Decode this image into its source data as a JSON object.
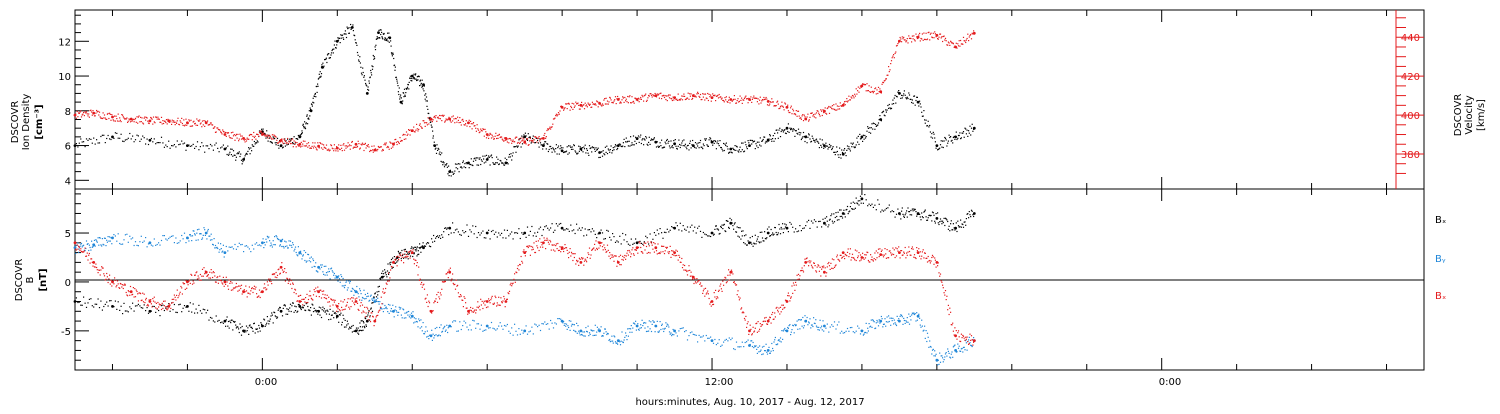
{
  "colors": {
    "black": "#000000",
    "red": "#e41a1c",
    "blue": "#1f86d8"
  },
  "xlabel": "hours:minutes, Aug. 10, 2017 - Aug. 12, 2017",
  "x_ticks": [
    "0:00",
    "12:00",
    "0:00"
  ],
  "chart_data": [
    {
      "type": "scatter",
      "panel": "top",
      "ylabel_left": [
        "DSCOVR",
        "Ion Density",
        "[cm⁻³]"
      ],
      "ylabel_right": [
        "DSCOVR",
        "Velocity",
        "[km/s]"
      ],
      "x_range_hours": [
        -5,
        31
      ],
      "ylim_left": [
        3.5,
        13.8
      ],
      "ylim_right": [
        362,
        454
      ],
      "left_ticks": [
        "4",
        "6",
        "8",
        "10",
        "12"
      ],
      "right_ticks": [
        "380",
        "400",
        "420",
        "440"
      ],
      "series": [
        {
          "axis": "left",
          "color": "black",
          "x": [
            -5,
            -4,
            -3,
            -2,
            -1,
            -0.5,
            0,
            0.5,
            1,
            1.3,
            1.6,
            2,
            2.4,
            2.8,
            3.1,
            3.4,
            3.7,
            4,
            4.3,
            4.6,
            5,
            5.5,
            6,
            6.5,
            7,
            7.5,
            8,
            8.5,
            9,
            9.5,
            10,
            10.5,
            11,
            11.5,
            12,
            12.5,
            13,
            13.5,
            14,
            14.5,
            15,
            15.5,
            16,
            16.5,
            17,
            17.5,
            18,
            18.5,
            19
          ],
          "y": [
            6,
            6.5,
            6.3,
            6,
            5.8,
            5.2,
            6.8,
            6,
            6.5,
            8,
            10.5,
            12,
            12.8,
            9,
            12.5,
            12.2,
            8.5,
            10,
            9.5,
            6,
            4.5,
            5,
            5.2,
            5,
            6.5,
            6,
            5.7,
            5.8,
            5.6,
            6,
            6.4,
            6.2,
            6.1,
            6,
            6.2,
            5.8,
            6,
            6.3,
            7,
            6.5,
            6,
            5.5,
            6.5,
            7.5,
            9,
            8.5,
            6,
            6.5,
            7
          ]
        },
        {
          "axis": "right",
          "color": "red",
          "x": [
            -5,
            -4.5,
            -4,
            -3.5,
            -3,
            -2.5,
            -2,
            -1.5,
            -1,
            -0.5,
            0,
            0.5,
            1,
            1.5,
            2,
            2.5,
            3,
            3.5,
            4,
            4.5,
            5,
            5.5,
            6,
            6.5,
            7,
            7.5,
            8,
            8.5,
            9,
            9.5,
            10,
            10.5,
            11,
            11.5,
            12,
            12.5,
            13,
            13.5,
            14,
            14.5,
            15,
            15.5,
            16,
            16.5,
            17,
            17.5,
            18,
            18.5,
            19
          ],
          "y": [
            400,
            401,
            399,
            398,
            397,
            397,
            396,
            396,
            390,
            388,
            390,
            387,
            385,
            384,
            383,
            385,
            382,
            385,
            392,
            398,
            398,
            396,
            390,
            388,
            386,
            388,
            404,
            405,
            406,
            408,
            408,
            410,
            409,
            410,
            409,
            408,
            408,
            407,
            404,
            398,
            402,
            405,
            415,
            412,
            438,
            440,
            441,
            435,
            442
          ]
        }
      ]
    },
    {
      "type": "scatter",
      "panel": "bottom",
      "ylabel_left": [
        "DSCOVR",
        "B",
        "[nT]"
      ],
      "x_range_hours": [
        -5,
        31
      ],
      "ylim": [
        -9,
        9.5
      ],
      "left_ticks": [
        "5",
        "0",
        "-5"
      ],
      "legend": [
        "Bₓ",
        "Bᵧ",
        "Bₓ"
      ],
      "series": [
        {
          "name": "Bx",
          "color": "black",
          "x": [
            -5,
            -4,
            -3,
            -2,
            -1,
            -0.5,
            0,
            0.5,
            1,
            1.5,
            2,
            2.5,
            2.8,
            3.2,
            3.6,
            4,
            4.3,
            5,
            6,
            7,
            8,
            9,
            10,
            11,
            12,
            12.5,
            13,
            13.5,
            14,
            15,
            15.5,
            16,
            17,
            17.5,
            18,
            18.5,
            19
          ],
          "y": [
            -2,
            -2.5,
            -3,
            -2.5,
            -4,
            -5,
            -4.5,
            -3,
            -2.5,
            -3,
            -3.5,
            -5,
            -4,
            0.5,
            2.5,
            3,
            3.5,
            5.5,
            5,
            5,
            5.5,
            5,
            4,
            5.5,
            5,
            6,
            4,
            5,
            5.5,
            6,
            7,
            8.5,
            7,
            7,
            6.5,
            5.5,
            7
          ]
        },
        {
          "name": "By",
          "color": "blue",
          "x": [
            -5,
            -4.5,
            -4,
            -3,
            -2,
            -1.5,
            -1,
            0,
            0.5,
            1,
            1.5,
            2,
            2.5,
            3,
            3.5,
            4,
            4.5,
            5,
            6,
            7,
            8,
            8.5,
            9,
            9.5,
            10,
            10.5,
            11,
            12,
            13,
            13.5,
            14,
            14.5,
            15,
            16,
            16.5,
            17,
            17.5,
            18,
            18.5,
            19
          ],
          "y": [
            3.5,
            3.8,
            4.5,
            4,
            4.5,
            5,
            3,
            4,
            4.2,
            3,
            1.5,
            0.5,
            -1,
            -2,
            -3,
            -3.5,
            -5.5,
            -4.5,
            -4.5,
            -5,
            -4,
            -5,
            -5,
            -6,
            -4.5,
            -4.5,
            -5,
            -6,
            -6.5,
            -7,
            -5,
            -4,
            -4.5,
            -5,
            -4,
            -4,
            -3.5,
            -8,
            -7,
            -6
          ]
        },
        {
          "name": "Bz",
          "color": "red",
          "x": [
            -5,
            -4.5,
            -4,
            -3.5,
            -3,
            -2.5,
            -2,
            -1.5,
            -1,
            -0.5,
            0,
            0.5,
            1,
            1.5,
            2,
            2.5,
            3,
            3.5,
            4,
            4.5,
            5,
            5.5,
            6,
            6.5,
            7,
            7.5,
            8,
            8.5,
            9,
            9.5,
            10,
            10.5,
            11,
            11.5,
            12,
            12.5,
            13,
            13.5,
            14,
            14.5,
            15,
            15.5,
            16,
            16.5,
            17,
            17.5,
            18,
            18.5,
            19
          ],
          "y": [
            4,
            2,
            0,
            -1,
            -2,
            -2.5,
            0,
            1,
            0,
            -1,
            -1,
            1.5,
            -2,
            -1,
            -2.5,
            -2,
            -4,
            2,
            3,
            -3,
            1,
            -3,
            -2,
            -2,
            3,
            4,
            3.5,
            2,
            4,
            2,
            3.5,
            3.5,
            3,
            0.5,
            -2,
            1,
            -5,
            -4,
            -2,
            2,
            1,
            3,
            2.5,
            2.8,
            3,
            3,
            2,
            -5.5,
            -6
          ]
        }
      ]
    }
  ]
}
